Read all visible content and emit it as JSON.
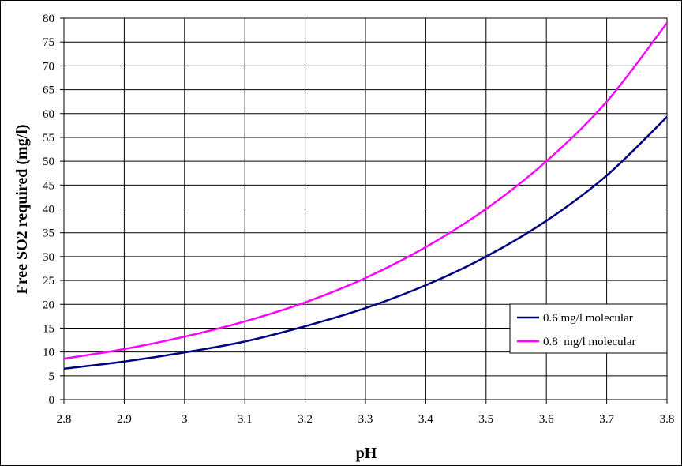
{
  "chart_data": {
    "type": "line",
    "title": "",
    "xlabel": "pH",
    "ylabel": "Free SO2 required (mg/l)",
    "xlim": [
      2.8,
      3.8
    ],
    "ylim": [
      0,
      80
    ],
    "x_ticks": [
      "2.8",
      "2.9",
      "3",
      "3.1",
      "3.2",
      "3.3",
      "3.4",
      "3.5",
      "3.6",
      "3.7",
      "3.8"
    ],
    "y_ticks": [
      "0",
      "5",
      "10",
      "15",
      "20",
      "25",
      "30",
      "35",
      "40",
      "45",
      "50",
      "55",
      "60",
      "65",
      "70",
      "75",
      "80"
    ],
    "grid": true,
    "legend_position": "lower-right",
    "x": [
      2.8,
      2.9,
      3.0,
      3.1,
      3.2,
      3.3,
      3.4,
      3.5,
      3.6,
      3.7,
      3.8
    ],
    "series": [
      {
        "name": "0.6 mg/l molecular",
        "color": "#000080",
        "values": [
          6.5,
          8.0,
          9.9,
          12.2,
          15.4,
          19.2,
          24.0,
          30.0,
          37.5,
          47.0,
          59.3
        ]
      },
      {
        "name": "0.8  mg/l molecular",
        "color": "#ff00ff",
        "values": [
          8.6,
          10.6,
          13.2,
          16.4,
          20.4,
          25.5,
          32.0,
          40.0,
          50.0,
          62.5,
          79.0
        ]
      }
    ]
  }
}
